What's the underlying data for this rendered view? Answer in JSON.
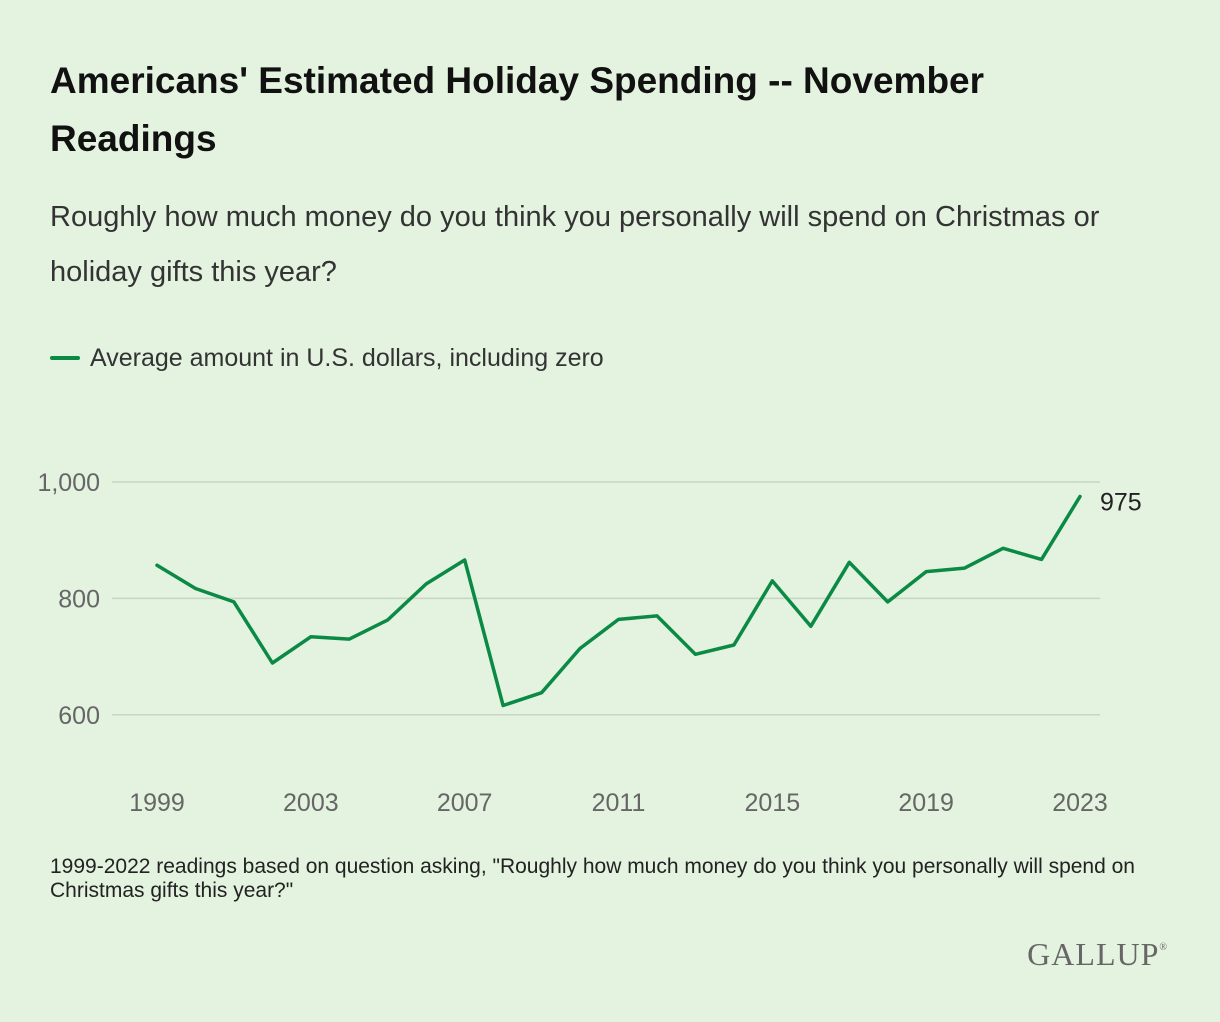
{
  "header": {
    "title": "Americans' Estimated Holiday Spending -- November Readings",
    "subtitle": "Roughly how much money do you think you personally will spend on Christmas or holiday gifts this year?"
  },
  "footer": {
    "note": "1999-2022 readings based on question asking, \"Roughly how much money do you think you personally will spend on Christmas gifts this year?\"",
    "brand": "GALLUP",
    "brand_mark": "®"
  },
  "colors": {
    "background": "#e4f2e0",
    "series": "#0a8a45",
    "gridline": "#c6d6c2"
  },
  "chart_data": {
    "type": "line",
    "x": [
      1999,
      2000,
      2001,
      2002,
      2003,
      2004,
      2005,
      2006,
      2007,
      2008,
      2009,
      2010,
      2011,
      2012,
      2013,
      2014,
      2015,
      2016,
      2017,
      2018,
      2019,
      2020,
      2021,
      2022,
      2023
    ],
    "series": [
      {
        "name": "Average amount in U.S. dollars, including zero",
        "values": [
          857,
          817,
          794,
          689,
          734,
          730,
          763,
          825,
          866,
          616,
          638,
          714,
          764,
          770,
          704,
          720,
          830,
          752,
          862,
          794,
          846,
          852,
          886,
          867,
          975
        ]
      }
    ],
    "xticks": [
      "1999",
      "2003",
      "2007",
      "2011",
      "2015",
      "2019",
      "2023"
    ],
    "yticks": [
      "1,000",
      "800",
      "600"
    ],
    "ytick_values": [
      1000,
      800,
      600
    ],
    "ylim": [
      520,
      1000
    ],
    "xlim": [
      1999,
      2023
    ],
    "end_label": "975",
    "grid": "horizontal",
    "legend": "top-left"
  }
}
